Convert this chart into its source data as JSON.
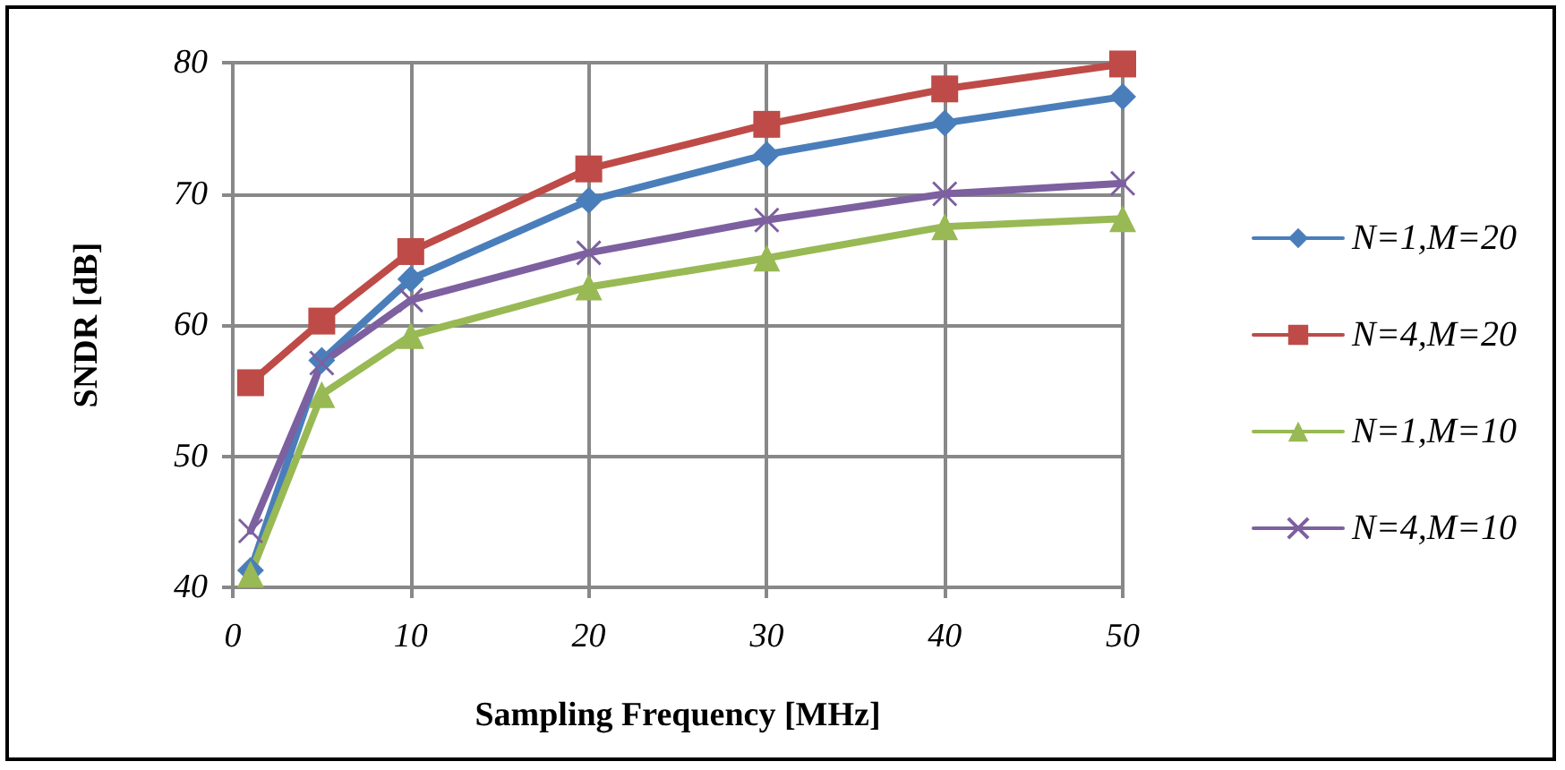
{
  "chart_data": {
    "type": "line",
    "xlabel": "Sampling Frequency [MHz]",
    "ylabel": "SNDR [dB]",
    "x": [
      1,
      5,
      10,
      20,
      30,
      40,
      50
    ],
    "series": [
      {
        "name": "N=1,M=20",
        "color": "#4a7ebb",
        "marker": "diamond",
        "values": [
          41.3,
          57.3,
          63.5,
          69.5,
          73.0,
          75.4,
          77.4
        ]
      },
      {
        "name": "N=4,M=20",
        "color": "#be4b48",
        "marker": "square",
        "values": [
          55.6,
          60.3,
          65.6,
          71.9,
          75.3,
          78.0,
          79.9
        ]
      },
      {
        "name": "N=1,M=10",
        "color": "#98b954",
        "marker": "triangle",
        "values": [
          41.0,
          54.7,
          59.2,
          62.9,
          65.1,
          67.5,
          68.1
        ]
      },
      {
        "name": "N=4,M=10",
        "color": "#7d60a0",
        "marker": "cross",
        "values": [
          44.3,
          57.1,
          61.9,
          65.5,
          68.0,
          70.0,
          70.8
        ]
      }
    ],
    "xlim": [
      0,
      50
    ],
    "xticks": [
      0,
      10,
      20,
      30,
      40,
      50
    ],
    "ylim": [
      40,
      80
    ],
    "yticks": [
      40,
      50,
      60,
      70,
      80
    ],
    "grid": true,
    "legend": "right",
    "line_style": "solid"
  }
}
